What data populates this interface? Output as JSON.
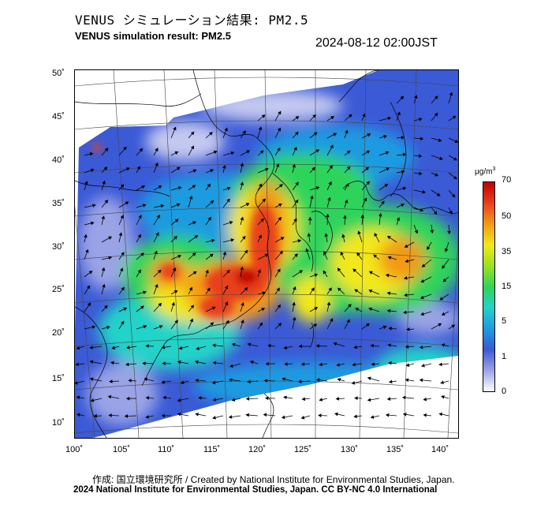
{
  "header": {
    "title_jp": "VENUS シミュレーション結果: PM2.5",
    "title_en": "VENUS simulation result: PM2.5",
    "timestamp": "2024-08-12 02:00JST"
  },
  "map": {
    "variable": "PM2.5",
    "lat_labels": [
      "50˚",
      "45˚",
      "40˚",
      "35˚",
      "30˚",
      "25˚",
      "20˚",
      "15˚",
      "10˚"
    ],
    "lon_labels": [
      "100˚",
      "105˚",
      "110˚",
      "115˚",
      "120˚",
      "125˚",
      "130˚",
      "135˚",
      "140˚"
    ],
    "lat_range": [
      9,
      51
    ],
    "lon_range": [
      100,
      142
    ]
  },
  "colorbar": {
    "unit": "μg/m",
    "unit_sup": "3",
    "ticks": [
      "70",
      "50",
      "35",
      "15",
      "5",
      "1",
      "0"
    ],
    "colors": [
      "#ffffff",
      "#9aa3e6",
      "#3b5ad6",
      "#1e9be0",
      "#22d3c9",
      "#2ed45a",
      "#9be21f",
      "#f2e81a",
      "#f29a12",
      "#e8401b",
      "#c00000"
    ]
  },
  "footer": {
    "credit_jp": "作成: 国立環境研究所 / Created by National Institute for Environmental Studies, Japan.",
    "copyright": "2024 National Institute for Environmental Studies, Japan. CC BY-NC 4.0 International"
  }
}
